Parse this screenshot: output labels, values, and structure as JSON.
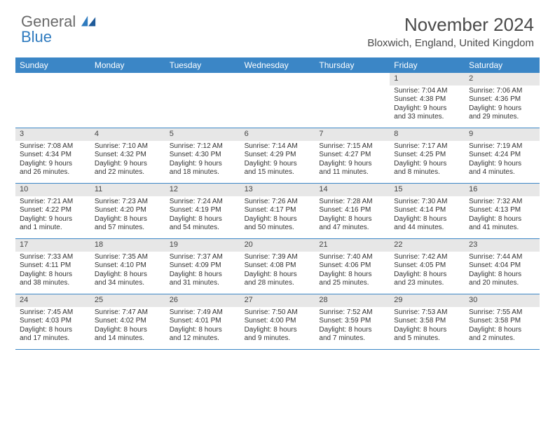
{
  "colors": {
    "header_bg": "#3b86c6",
    "header_text": "#ffffff",
    "daynum_bg": "#e7e7e7",
    "row_divider": "#3b86c6",
    "body_text": "#333333",
    "logo_gray": "#6a6a6a",
    "logo_blue": "#2f7bbf",
    "page_bg": "#ffffff"
  },
  "typography": {
    "title_fontsize": 26,
    "location_fontsize": 15,
    "dayname_fontsize": 12,
    "cell_fontsize": 10
  },
  "logo": {
    "line1": "General",
    "line2": "Blue"
  },
  "title": "November 2024",
  "location": "Bloxwich, England, United Kingdom",
  "daynames": [
    "Sunday",
    "Monday",
    "Tuesday",
    "Wednesday",
    "Thursday",
    "Friday",
    "Saturday"
  ],
  "weeks": [
    [
      null,
      null,
      null,
      null,
      null,
      {
        "n": "1",
        "sunrise": "Sunrise: 7:04 AM",
        "sunset": "Sunset: 4:38 PM",
        "dl1": "Daylight: 9 hours",
        "dl2": "and 33 minutes."
      },
      {
        "n": "2",
        "sunrise": "Sunrise: 7:06 AM",
        "sunset": "Sunset: 4:36 PM",
        "dl1": "Daylight: 9 hours",
        "dl2": "and 29 minutes."
      }
    ],
    [
      {
        "n": "3",
        "sunrise": "Sunrise: 7:08 AM",
        "sunset": "Sunset: 4:34 PM",
        "dl1": "Daylight: 9 hours",
        "dl2": "and 26 minutes."
      },
      {
        "n": "4",
        "sunrise": "Sunrise: 7:10 AM",
        "sunset": "Sunset: 4:32 PM",
        "dl1": "Daylight: 9 hours",
        "dl2": "and 22 minutes."
      },
      {
        "n": "5",
        "sunrise": "Sunrise: 7:12 AM",
        "sunset": "Sunset: 4:30 PM",
        "dl1": "Daylight: 9 hours",
        "dl2": "and 18 minutes."
      },
      {
        "n": "6",
        "sunrise": "Sunrise: 7:14 AM",
        "sunset": "Sunset: 4:29 PM",
        "dl1": "Daylight: 9 hours",
        "dl2": "and 15 minutes."
      },
      {
        "n": "7",
        "sunrise": "Sunrise: 7:15 AM",
        "sunset": "Sunset: 4:27 PM",
        "dl1": "Daylight: 9 hours",
        "dl2": "and 11 minutes."
      },
      {
        "n": "8",
        "sunrise": "Sunrise: 7:17 AM",
        "sunset": "Sunset: 4:25 PM",
        "dl1": "Daylight: 9 hours",
        "dl2": "and 8 minutes."
      },
      {
        "n": "9",
        "sunrise": "Sunrise: 7:19 AM",
        "sunset": "Sunset: 4:24 PM",
        "dl1": "Daylight: 9 hours",
        "dl2": "and 4 minutes."
      }
    ],
    [
      {
        "n": "10",
        "sunrise": "Sunrise: 7:21 AM",
        "sunset": "Sunset: 4:22 PM",
        "dl1": "Daylight: 9 hours",
        "dl2": "and 1 minute."
      },
      {
        "n": "11",
        "sunrise": "Sunrise: 7:23 AM",
        "sunset": "Sunset: 4:20 PM",
        "dl1": "Daylight: 8 hours",
        "dl2": "and 57 minutes."
      },
      {
        "n": "12",
        "sunrise": "Sunrise: 7:24 AM",
        "sunset": "Sunset: 4:19 PM",
        "dl1": "Daylight: 8 hours",
        "dl2": "and 54 minutes."
      },
      {
        "n": "13",
        "sunrise": "Sunrise: 7:26 AM",
        "sunset": "Sunset: 4:17 PM",
        "dl1": "Daylight: 8 hours",
        "dl2": "and 50 minutes."
      },
      {
        "n": "14",
        "sunrise": "Sunrise: 7:28 AM",
        "sunset": "Sunset: 4:16 PM",
        "dl1": "Daylight: 8 hours",
        "dl2": "and 47 minutes."
      },
      {
        "n": "15",
        "sunrise": "Sunrise: 7:30 AM",
        "sunset": "Sunset: 4:14 PM",
        "dl1": "Daylight: 8 hours",
        "dl2": "and 44 minutes."
      },
      {
        "n": "16",
        "sunrise": "Sunrise: 7:32 AM",
        "sunset": "Sunset: 4:13 PM",
        "dl1": "Daylight: 8 hours",
        "dl2": "and 41 minutes."
      }
    ],
    [
      {
        "n": "17",
        "sunrise": "Sunrise: 7:33 AM",
        "sunset": "Sunset: 4:11 PM",
        "dl1": "Daylight: 8 hours",
        "dl2": "and 38 minutes."
      },
      {
        "n": "18",
        "sunrise": "Sunrise: 7:35 AM",
        "sunset": "Sunset: 4:10 PM",
        "dl1": "Daylight: 8 hours",
        "dl2": "and 34 minutes."
      },
      {
        "n": "19",
        "sunrise": "Sunrise: 7:37 AM",
        "sunset": "Sunset: 4:09 PM",
        "dl1": "Daylight: 8 hours",
        "dl2": "and 31 minutes."
      },
      {
        "n": "20",
        "sunrise": "Sunrise: 7:39 AM",
        "sunset": "Sunset: 4:08 PM",
        "dl1": "Daylight: 8 hours",
        "dl2": "and 28 minutes."
      },
      {
        "n": "21",
        "sunrise": "Sunrise: 7:40 AM",
        "sunset": "Sunset: 4:06 PM",
        "dl1": "Daylight: 8 hours",
        "dl2": "and 25 minutes."
      },
      {
        "n": "22",
        "sunrise": "Sunrise: 7:42 AM",
        "sunset": "Sunset: 4:05 PM",
        "dl1": "Daylight: 8 hours",
        "dl2": "and 23 minutes."
      },
      {
        "n": "23",
        "sunrise": "Sunrise: 7:44 AM",
        "sunset": "Sunset: 4:04 PM",
        "dl1": "Daylight: 8 hours",
        "dl2": "and 20 minutes."
      }
    ],
    [
      {
        "n": "24",
        "sunrise": "Sunrise: 7:45 AM",
        "sunset": "Sunset: 4:03 PM",
        "dl1": "Daylight: 8 hours",
        "dl2": "and 17 minutes."
      },
      {
        "n": "25",
        "sunrise": "Sunrise: 7:47 AM",
        "sunset": "Sunset: 4:02 PM",
        "dl1": "Daylight: 8 hours",
        "dl2": "and 14 minutes."
      },
      {
        "n": "26",
        "sunrise": "Sunrise: 7:49 AM",
        "sunset": "Sunset: 4:01 PM",
        "dl1": "Daylight: 8 hours",
        "dl2": "and 12 minutes."
      },
      {
        "n": "27",
        "sunrise": "Sunrise: 7:50 AM",
        "sunset": "Sunset: 4:00 PM",
        "dl1": "Daylight: 8 hours",
        "dl2": "and 9 minutes."
      },
      {
        "n": "28",
        "sunrise": "Sunrise: 7:52 AM",
        "sunset": "Sunset: 3:59 PM",
        "dl1": "Daylight: 8 hours",
        "dl2": "and 7 minutes."
      },
      {
        "n": "29",
        "sunrise": "Sunrise: 7:53 AM",
        "sunset": "Sunset: 3:58 PM",
        "dl1": "Daylight: 8 hours",
        "dl2": "and 5 minutes."
      },
      {
        "n": "30",
        "sunrise": "Sunrise: 7:55 AM",
        "sunset": "Sunset: 3:58 PM",
        "dl1": "Daylight: 8 hours",
        "dl2": "and 2 minutes."
      }
    ]
  ]
}
